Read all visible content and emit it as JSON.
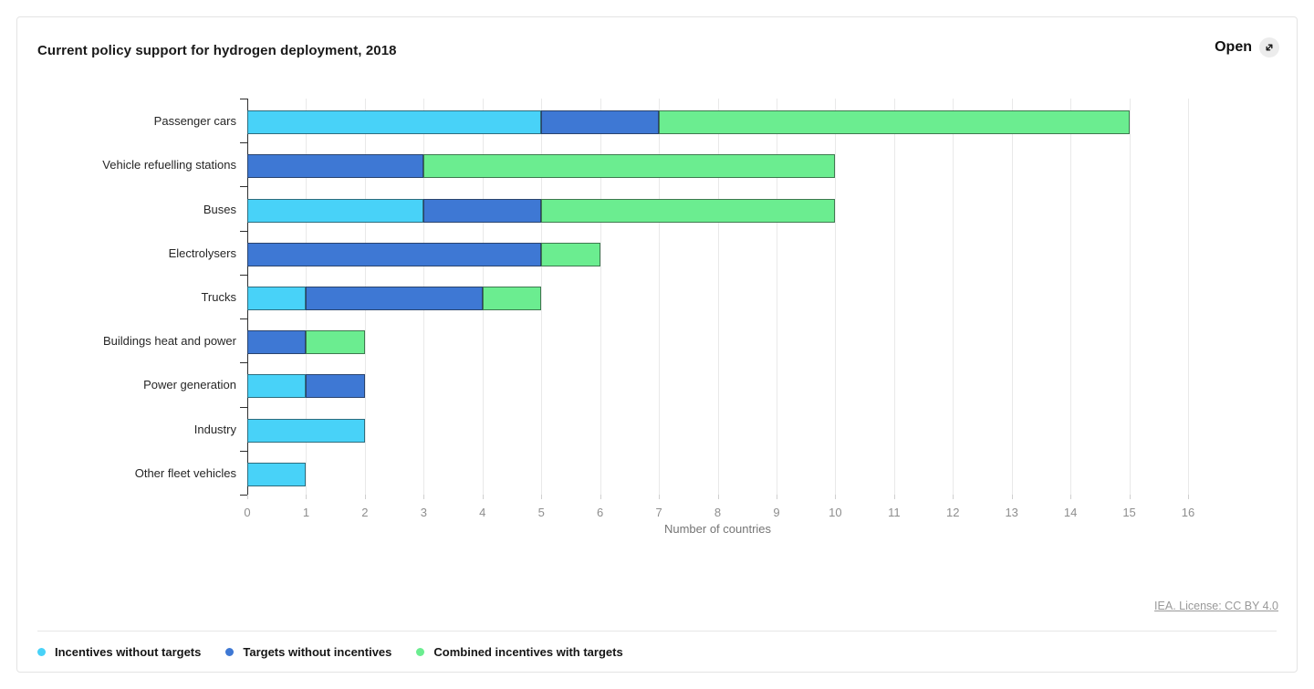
{
  "header": {
    "title": "Current policy support for hydrogen deployment, 2018",
    "open_label": "Open"
  },
  "chart_data": {
    "type": "bar",
    "orientation": "horizontal",
    "stacked": true,
    "title": "Current policy support for hydrogen deployment, 2018",
    "categories": [
      "Passenger cars",
      "Vehicle refuelling stations",
      "Buses",
      "Electrolysers",
      "Trucks",
      "Buildings heat and power",
      "Power generation",
      "Industry",
      "Other fleet vehicles"
    ],
    "series": [
      {
        "name": "Incentives without targets",
        "color": "#48D2F8",
        "values": [
          5,
          0,
          3,
          0,
          1,
          0,
          1,
          2,
          1
        ]
      },
      {
        "name": "Targets without incentives",
        "color": "#3E78D4",
        "values": [
          2,
          3,
          2,
          5,
          3,
          1,
          1,
          0,
          0
        ]
      },
      {
        "name": "Combined incentives with targets",
        "color": "#6BED90",
        "values": [
          8,
          7,
          5,
          1,
          1,
          1,
          0,
          0,
          0
        ]
      }
    ],
    "totals": [
      15,
      10,
      10,
      6,
      5,
      2,
      2,
      2,
      1
    ],
    "xlabel": "Number of countries",
    "xlim": [
      0,
      16
    ],
    "xticks": [
      0,
      1,
      2,
      3,
      4,
      5,
      6,
      7,
      8,
      9,
      10,
      11,
      12,
      13,
      14,
      15,
      16
    ],
    "grid": true,
    "legend_position": "bottom"
  },
  "footer": {
    "license": "IEA. License: CC BY 4.0"
  }
}
